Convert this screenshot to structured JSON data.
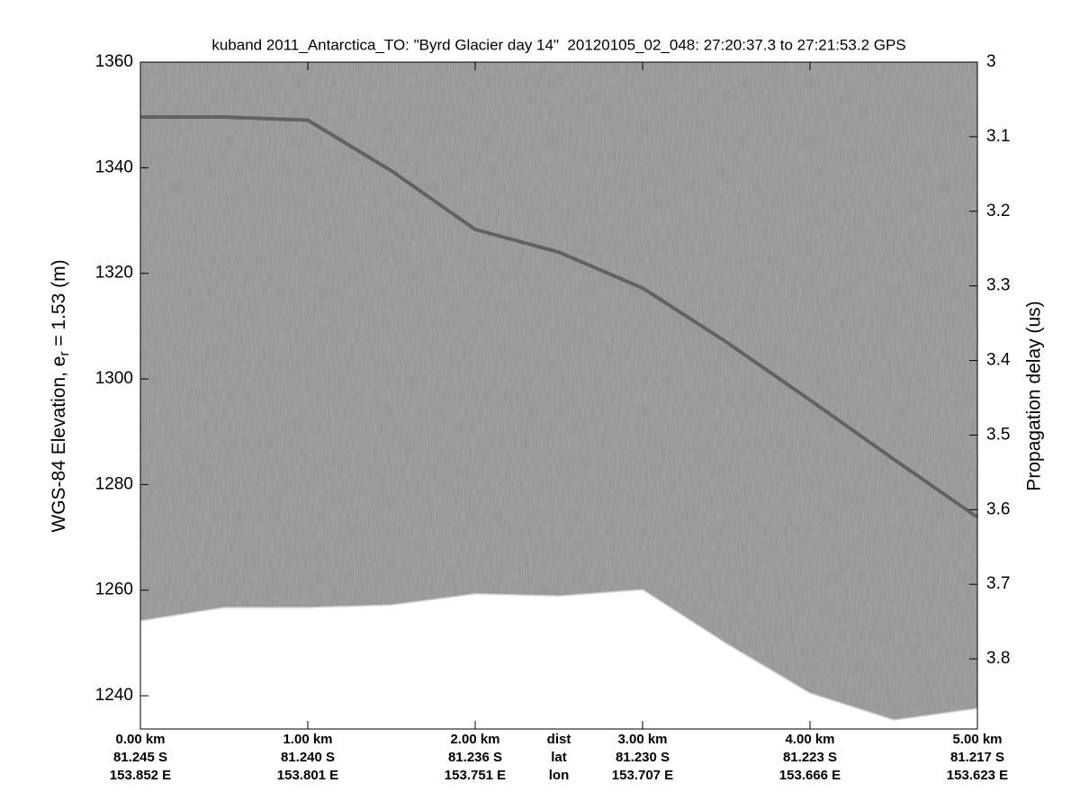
{
  "chart_data": {
    "type": "echogram",
    "title": "kuband 2011_Antarctica_TO: \"Byrd Glacier day 14\"  20120105_02_048: 27:20:37.3 to 27:21:53.2 GPS",
    "ylabel": [
      "WGS-84 Elevation, e",
      "r",
      " = 1.53 (m)"
    ],
    "y2label": "Propagation delay (us)",
    "xlim": [
      0,
      5
    ],
    "xticks": [
      {
        "value": 0,
        "label": "0.00 km"
      },
      {
        "value": 1,
        "label": "1.00 km"
      },
      {
        "value": 2,
        "label": "2.00 km"
      },
      {
        "value": 3,
        "label": "3.00 km"
      },
      {
        "value": 4,
        "label": "4.00 km"
      },
      {
        "value": 5,
        "label": "5.00 km"
      }
    ],
    "lat": [
      "81.245 S",
      "81.240 S",
      "81.236 S",
      "81.230 S",
      "81.223 S",
      "81.217 S"
    ],
    "lon": [
      "153.852 E",
      "153.801 E",
      "153.751 E",
      "153.707 E",
      "153.666 E",
      "153.623 E"
    ],
    "row_labels": {
      "position": 2.5,
      "labels": [
        "dist",
        "lat",
        "lon"
      ]
    },
    "ylim": [
      1233.7,
      1360
    ],
    "yticks": [
      1240,
      1260,
      1280,
      1300,
      1320,
      1340,
      1360
    ],
    "y2lim": [
      3.894,
      3
    ],
    "y2ticks": [
      3,
      3.1,
      3.2,
      3.3,
      3.4,
      3.5,
      3.6,
      3.7,
      3.8
    ],
    "x": [
      0,
      0.5,
      1,
      1.5,
      2,
      2.5,
      3,
      3.5,
      4,
      4.5,
      5
    ],
    "series": [
      {
        "role": "reflector",
        "color": "#3c3c3c",
        "values": [
          1349.6,
          1349.6,
          1349,
          1339.4,
          1328.3,
          1324,
          1317.2,
          1307,
          1296,
          1284.8,
          1273.8
        ]
      },
      {
        "role": "data-extent",
        "color": "#ffffff",
        "values": [
          1254.2,
          1256.7,
          1256.7,
          1257.2,
          1259.3,
          1258.9,
          1260.1,
          1249.9,
          1240.5,
          1235.4,
          1237.6
        ]
      }
    ]
  }
}
